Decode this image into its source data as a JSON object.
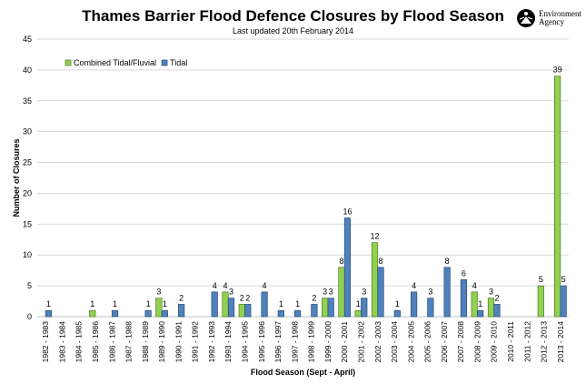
{
  "header": {
    "title": "Thames Barrier Flood Defence Closures by Flood Season",
    "subtitle": "Last updated 20th February 2014",
    "logo_text": [
      "Environment",
      "Agency"
    ]
  },
  "chart_data": {
    "type": "bar",
    "title": "Thames Barrier Flood Defence Closures by Flood Season",
    "subtitle": "Last updated 20th February 2014",
    "xlabel": "Flood Season (Sept - April)",
    "ylabel": "Number of Closures",
    "ylim": [
      0,
      45
    ],
    "yticks": [
      0,
      5,
      10,
      15,
      20,
      25,
      30,
      35,
      40,
      45
    ],
    "grid": true,
    "legend": "top-left",
    "categories": [
      "1982 - 1983",
      "1983 - 1984",
      "1984 - 1985",
      "1985 - 1986",
      "1986 - 1987",
      "1987 - 1988",
      "1988 - 1989",
      "1989 - 1990",
      "1990 - 1991",
      "1991 - 1992",
      "1992 - 1993",
      "1993 - 1994",
      "1994 - 1995",
      "1995 - 1996",
      "1996 - 1997",
      "1997 - 1998",
      "1998 - 1999",
      "1999 - 2000",
      "2000 - 2001",
      "2001 - 2002",
      "2002 - 2003",
      "2003 - 2004",
      "2004 - 2005",
      "2005 - 2006",
      "2006 - 2007",
      "2007 - 2008",
      "2008 - 2009",
      "2009 - 2010",
      "2010 - 2011",
      "2011 - 2012",
      "2012 - 2013",
      "2013 - 2014"
    ],
    "series": [
      {
        "name": "Combined Tidal/Fluvial",
        "color": "#92d050",
        "values": [
          0,
          0,
          0,
          1,
          0,
          0,
          0,
          3,
          0,
          0,
          0,
          4,
          2,
          0,
          0,
          0,
          0,
          3,
          8,
          1,
          12,
          0,
          0,
          0,
          0,
          0,
          4,
          3,
          0,
          0,
          5,
          39
        ]
      },
      {
        "name": "Tidal",
        "color": "#4f81bd",
        "values": [
          1,
          0,
          0,
          0,
          1,
          0,
          1,
          1,
          2,
          0,
          4,
          3,
          2,
          4,
          1,
          1,
          2,
          3,
          16,
          3,
          8,
          1,
          4,
          3,
          8,
          6,
          1,
          2,
          0,
          0,
          0,
          5
        ]
      }
    ]
  }
}
